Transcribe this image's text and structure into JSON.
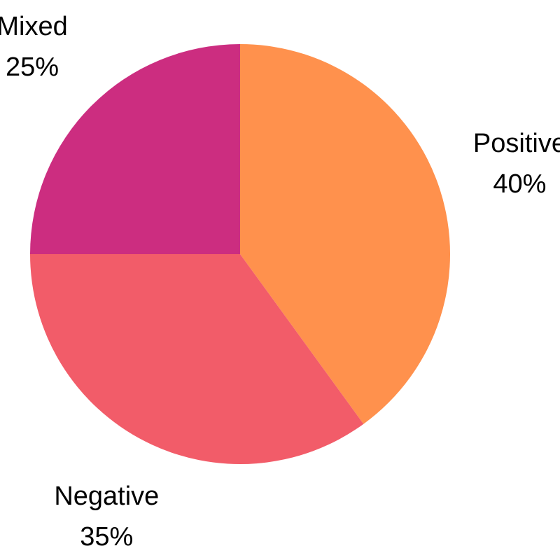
{
  "chart_data": {
    "type": "pie",
    "title": "",
    "slices": [
      {
        "label": "Positive",
        "value": 40,
        "value_label": "40%",
        "color": "#FF914D"
      },
      {
        "label": "Negative",
        "value": 35,
        "value_label": "35%",
        "color": "#F25C69"
      },
      {
        "label": "Mixed",
        "value": 25,
        "value_label": "25%",
        "color": "#CC2D80"
      }
    ],
    "start_angle": "12 o'clock",
    "direction": "clockwise",
    "legend": "none",
    "labels_outside": true
  }
}
